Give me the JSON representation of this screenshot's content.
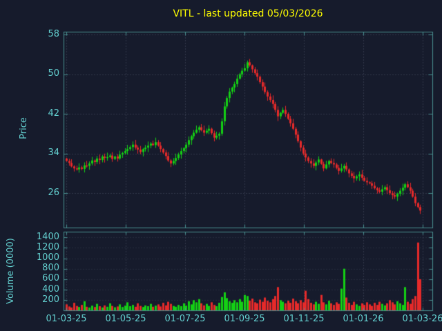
{
  "title": "VITL - last updated 05/03/2026",
  "colors": {
    "background": "#161b2c",
    "title": "#ffff00",
    "axis_text": "#63cfcf",
    "border": "#4a9090",
    "grid": "rgba(150,162,182,0.45)",
    "up": "#14d014",
    "down": "#e62a2a"
  },
  "price_axis": {
    "label": "Price",
    "ticks": [
      "58",
      "50",
      "42",
      "34",
      "26"
    ]
  },
  "volume_axis": {
    "label": "Volume (0000)",
    "ticks": [
      "1400",
      "1200",
      "1000",
      "800",
      "600",
      "400",
      "200"
    ]
  },
  "x_axis": {
    "ticks": [
      "01-03-25",
      "01-05-25",
      "01-07-25",
      "01-09-25",
      "01-11-25",
      "01-01-26",
      "01-03-26"
    ]
  },
  "chart_data": [
    {
      "type": "candlestick",
      "title": "VITL - last updated 05/03/2026",
      "ylabel": "Price",
      "ylim": [
        19,
        58.5
      ],
      "y_ticks": [
        26,
        34,
        42,
        50,
        58
      ],
      "x_tick_labels": [
        "01-03-25",
        "01-05-25",
        "01-07-25",
        "01-09-25",
        "01-11-25",
        "01-01-26",
        "01-03-26"
      ],
      "grid": true,
      "note": "closes estimated from pixels; opens = previous close; highs/lows approx +/-0.2-1.0 around body",
      "closes": [
        32.5,
        32.1,
        31.4,
        31.0,
        30.8,
        31.2,
        30.9,
        31.6,
        31.5,
        32.0,
        32.6,
        32.3,
        33.0,
        32.7,
        33.4,
        33.1,
        33.3,
        33.6,
        32.9,
        33.4,
        33.0,
        33.8,
        34.1,
        34.5,
        34.9,
        35.3,
        35.8,
        35.2,
        34.8,
        34.3,
        34.9,
        35.2,
        35.6,
        36.0,
        35.7,
        36.3,
        35.6,
        34.9,
        34.2,
        33.5,
        32.6,
        32.0,
        32.5,
        33.1,
        33.8,
        34.5,
        35.1,
        35.8,
        36.7,
        37.5,
        38.2,
        38.8,
        39.3,
        38.7,
        38.2,
        38.6,
        39.0,
        38.1,
        37.2,
        37.6,
        38.0,
        40.5,
        43.5,
        45.2,
        46.5,
        47.3,
        48.0,
        49.1,
        50.0,
        50.7,
        51.2,
        52.4,
        51.8,
        51.0,
        50.2,
        49.5,
        48.4,
        47.5,
        46.4,
        45.5,
        44.8,
        44.0,
        42.8,
        41.5,
        42.2,
        42.8,
        42.0,
        41.0,
        40.1,
        39.0,
        37.8,
        36.5,
        35.2,
        34.0,
        33.2,
        32.5,
        32.0,
        31.5,
        32.2,
        32.8,
        31.9,
        31.0,
        31.8,
        32.5,
        32.1,
        31.8,
        31.1,
        30.5,
        31.0,
        31.5,
        30.8,
        30.0,
        29.5,
        29.0,
        29.4,
        29.8,
        29.1,
        28.5,
        28.2,
        28.0,
        27.5,
        27.0,
        26.6,
        26.3,
        26.8,
        27.2,
        26.6,
        26.0,
        25.6,
        25.3,
        25.9,
        26.5,
        27.1,
        27.8,
        27.2,
        26.5,
        25.3,
        24.0,
        23.2,
        22.5
      ]
    },
    {
      "type": "bar",
      "ylabel": "Volume (0000)",
      "ylim": [
        0,
        1500
      ],
      "y_ticks": [
        200,
        400,
        600,
        800,
        1000,
        1200,
        1400
      ],
      "grid": true,
      "note": "bar colored green/red matching candle direction",
      "values": [
        120,
        80,
        60,
        150,
        90,
        70,
        110,
        180,
        75,
        60,
        95,
        70,
        130,
        85,
        60,
        100,
        75,
        140,
        90,
        65,
        80,
        120,
        70,
        95,
        160,
        85,
        110,
        75,
        140,
        90,
        70,
        100,
        85,
        130,
        75,
        95,
        120,
        80,
        150,
        100,
        170,
        130,
        90,
        75,
        110,
        85,
        140,
        95,
        180,
        120,
        200,
        160,
        220,
        140,
        100,
        130,
        90,
        160,
        110,
        85,
        150,
        260,
        350,
        240,
        180,
        150,
        200,
        160,
        220,
        170,
        300,
        280,
        190,
        230,
        160,
        140,
        210,
        170,
        250,
        190,
        160,
        220,
        280,
        450,
        200,
        170,
        140,
        190,
        150,
        230,
        180,
        140,
        200,
        160,
        380,
        220,
        150,
        120,
        170,
        130,
        300,
        160,
        120,
        190,
        140,
        110,
        160,
        130,
        420,
        800,
        250,
        150,
        110,
        170,
        120,
        90,
        140,
        110,
        160,
        120,
        90,
        150,
        110,
        170,
        130,
        100,
        140,
        200,
        160,
        120,
        180,
        140,
        110,
        450,
        170,
        130,
        220,
        280,
        1300,
        600
      ]
    }
  ]
}
